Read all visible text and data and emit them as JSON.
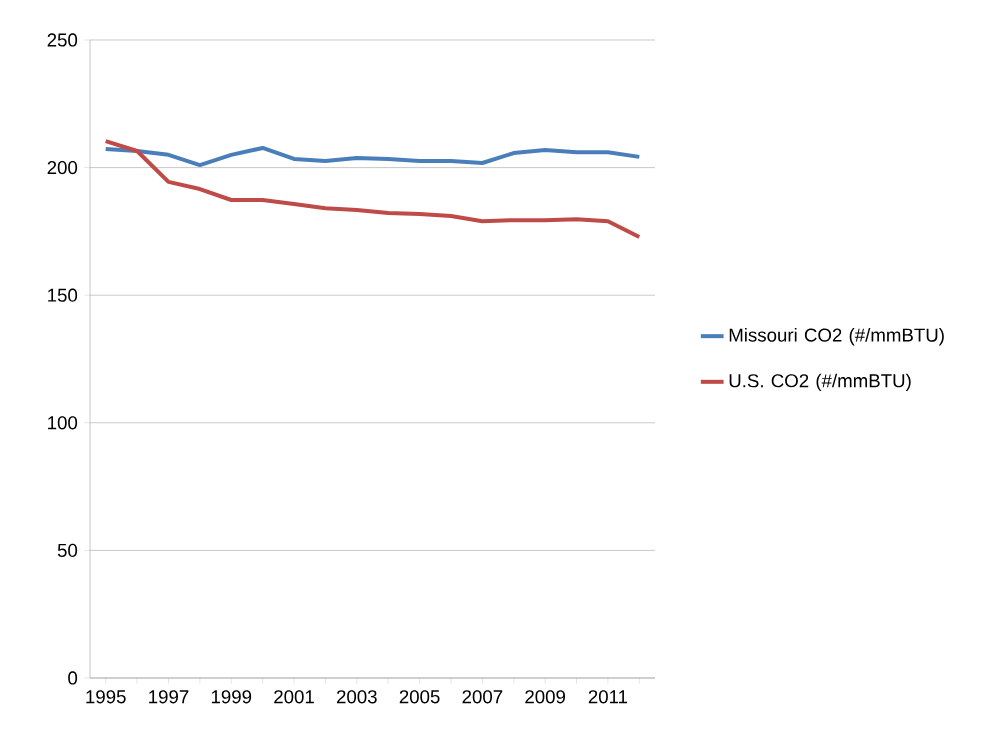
{
  "chart_data": {
    "type": "line",
    "categories": [
      "1995",
      null,
      "1997",
      null,
      "1999",
      null,
      "2001",
      null,
      "2003",
      null,
      "2005",
      null,
      "2007",
      null,
      "2009",
      null,
      "2011",
      null
    ],
    "series": [
      {
        "name": "Missouri CO2 (#/mmBTU)",
        "color": "#4a7ebb",
        "values": [
          207.3,
          206.5,
          205,
          201,
          205,
          207.7,
          203.4,
          202.6,
          203.8,
          203.4,
          202.6,
          202.6,
          201.8,
          205.7,
          206.9,
          206,
          206,
          204.2
        ]
      },
      {
        "name": "U.S. CO2 (#/mmBTU)",
        "color": "#be4b48",
        "values": [
          210.4,
          206.5,
          194.4,
          191.6,
          187.3,
          187.3,
          185.7,
          184.1,
          183.4,
          182.2,
          181.8,
          181,
          179,
          179.4,
          179.4,
          179.8,
          179,
          172.8
        ]
      }
    ],
    "ylim": [
      0,
      250
    ],
    "yticks": [
      0,
      50,
      100,
      150,
      200,
      250
    ],
    "grid": "y",
    "legend": "right",
    "marker": "none",
    "line_style": "solid"
  }
}
